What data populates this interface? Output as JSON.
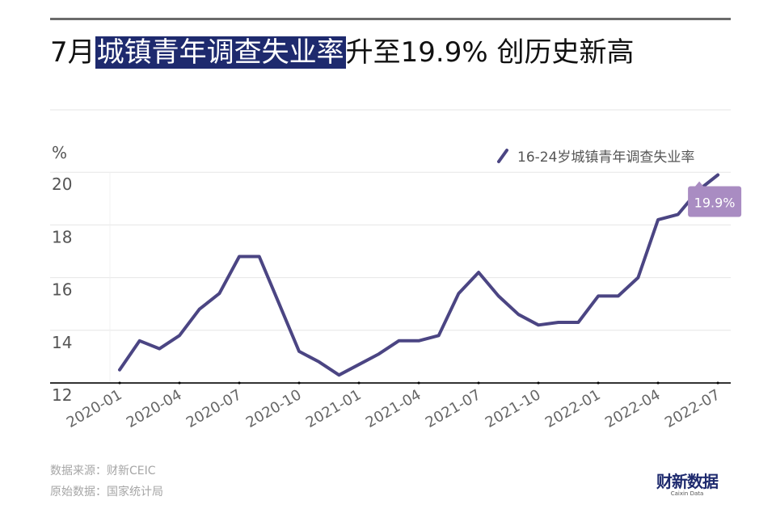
{
  "title": {
    "prefix": "7月",
    "highlight": "城镇青年调查失业率",
    "suffix": "升至19.9% 创历史新高"
  },
  "colors": {
    "line": "#4b4583",
    "highlight_bg": "#1e2a6e",
    "callout_bg": "#a98cc2",
    "grid": "#e6e6e6",
    "axis": "#333333"
  },
  "footer": {
    "source": "数据来源：财新CEIC",
    "original": "原始数据：国家统计局",
    "logo_cn": "财新数据",
    "logo_en": "Caixin Data"
  },
  "chart_data": {
    "type": "line",
    "title": "7月城镇青年调查失业率升至19.9% 创历史新高",
    "xlabel": "",
    "ylabel": "%",
    "ylim": [
      12,
      20
    ],
    "yticks": [
      12,
      14,
      16,
      18,
      20
    ],
    "grid": true,
    "legend_position": "top-right",
    "xtick_labels": [
      "2020-01",
      "2020-04",
      "2020-07",
      "2020-10",
      "2021-01",
      "2021-04",
      "2021-07",
      "2021-10",
      "2022-01",
      "2022-04",
      "2022-07"
    ],
    "x": [
      "2020-01",
      "2020-02",
      "2020-03",
      "2020-04",
      "2020-05",
      "2020-06",
      "2020-07",
      "2020-08",
      "2020-09",
      "2020-10",
      "2020-11",
      "2020-12",
      "2021-01",
      "2021-02",
      "2021-03",
      "2021-04",
      "2021-05",
      "2021-06",
      "2021-07",
      "2021-08",
      "2021-09",
      "2021-10",
      "2021-11",
      "2021-12",
      "2022-01",
      "2022-02",
      "2022-03",
      "2022-04",
      "2022-05",
      "2022-06",
      "2022-07"
    ],
    "series": [
      {
        "name": "16-24岁城镇青年调查失业率",
        "values": [
          12.5,
          13.6,
          13.3,
          13.8,
          14.8,
          15.4,
          16.8,
          16.8,
          15.0,
          13.2,
          12.8,
          12.3,
          12.7,
          13.1,
          13.6,
          13.6,
          13.8,
          15.4,
          16.2,
          15.3,
          14.6,
          14.2,
          14.3,
          14.3,
          15.3,
          15.3,
          16.0,
          18.2,
          18.4,
          19.3,
          19.9
        ]
      }
    ],
    "annotations": [
      {
        "x": "2022-07",
        "text": "19.9%"
      }
    ]
  }
}
